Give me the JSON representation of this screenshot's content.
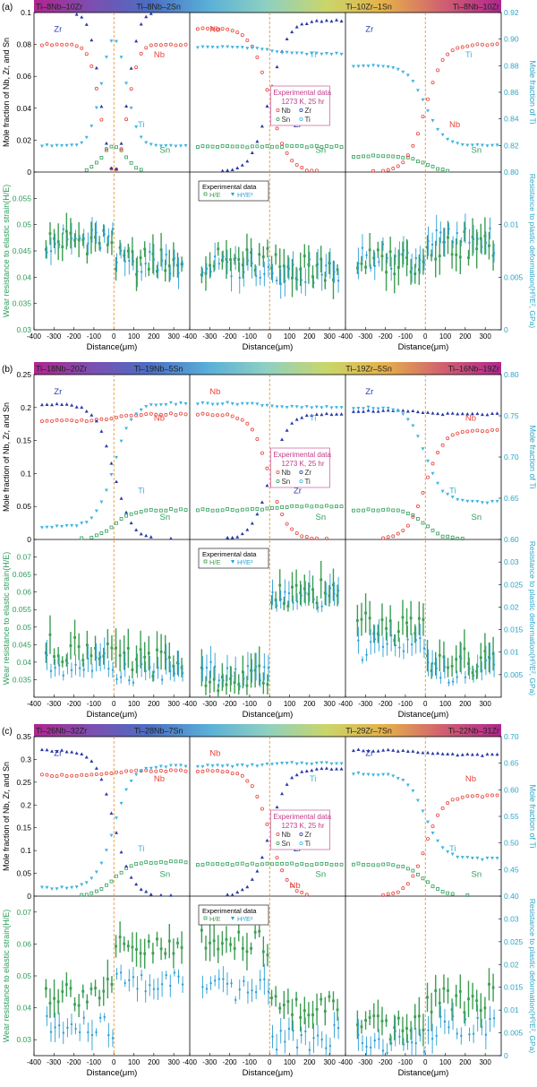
{
  "colors": {
    "nb": "#e8453c",
    "zr": "#2a3ba8",
    "ti": "#3fb4e0",
    "sn": "#2e9e5a",
    "he": "#3b9e52",
    "hhe": "#2a9fd6",
    "divider": "#e08a2a",
    "left_axis": "#2e9e5a",
    "right_axis": "#2aa5c8",
    "bar_stops": [
      "#b0268f",
      "#7b4fb0",
      "#4a6fc4",
      "#5ab0d8",
      "#8fd0c0",
      "#c9d66a",
      "#e6b04a",
      "#d06070",
      "#b0268f"
    ]
  },
  "chart_data": [
    {
      "type": "scatter",
      "panel_label": "(a)",
      "alloys": [
        "Ti–8Nb–10Zr",
        "Ti–8Nb–2Sn",
        "Ti–10Zr–1Sn",
        "Ti–8Nb–10Zr"
      ],
      "top": {
        "ylabel": "Mole fraction of Nb, Zr, and Sn",
        "ylabel_right": "Mole fraction of Ti",
        "ylim": [
          0,
          0.1
        ],
        "yticks": [
          "0",
          "0.02",
          "0.04",
          "0.06",
          "0.08",
          "0.1"
        ],
        "ylim_right": [
          0.8,
          0.92
        ],
        "yticks_right": [
          "0.80",
          "0.82",
          "0.84",
          "0.86",
          "0.88",
          "0.90",
          "0.92"
        ],
        "legend": {
          "title": "Experimental data",
          "cond": "1273 K, 25 hr",
          "items": [
            "Nb",
            "Zr",
            "Sn",
            "Ti"
          ]
        },
        "labels": [
          [
            "Zr",
            "Nb",
            "Ti",
            "Sn"
          ],
          [
            "Nb",
            "Ti",
            "Zr",
            "Sn"
          ],
          [
            "Zr",
            "Ti",
            "Nb",
            "Sn"
          ]
        ],
        "couples": [
          {
            "Nb": [
              0.08,
              0,
              0.08
            ],
            "Zr": [
              0.1,
              0,
              0.1
            ],
            "Sn": [
              0,
              0.016,
              0
            ],
            "Ti": [
              0.82,
              0.9,
              0.82
            ]
          },
          {
            "Nb": [
              0.09,
              0.09,
              0.0
            ],
            "Zr": [
              0.0,
              0.0,
              0.095
            ],
            "Sn": [
              0.016,
              0.016,
              0.016
            ],
            "Ti": [
              0.894,
              0.894,
              0.889
            ]
          },
          {
            "Nb": [
              0.0,
              0.0,
              0.08
            ],
            "Zr": [
              0.1,
              0.1,
              0.1
            ],
            "Sn": [
              0.01,
              0.01,
              0.0
            ],
            "Ti": [
              0.88,
              0.88,
              0.82
            ]
          }
        ]
      },
      "bottom": {
        "ylabel": "Wear resistance to elastic strain(H/E)",
        "ylabel_right": "Resistance to plastic deformation(H³/E², GPa)",
        "ylim": [
          0.03,
          0.06
        ],
        "yticks": [
          "0.03",
          "0.035",
          "0.04",
          "0.045",
          "0.05",
          "0.055"
        ],
        "ylim_right": [
          0,
          0.015
        ],
        "yticks_right": [
          "0",
          "0.005",
          "0.01"
        ],
        "legend": {
          "title": "Experimental data",
          "items": [
            "H/E",
            "H³/E²"
          ]
        },
        "he_levels": [
          [
            0.047,
            0.043
          ],
          [
            0.043,
            0.042
          ],
          [
            0.043,
            0.046
          ]
        ],
        "hhe_levels": [
          [
            0.0085,
            0.0065
          ],
          [
            0.006,
            0.0055
          ],
          [
            0.007,
            0.0085
          ]
        ]
      },
      "xlabel": "Distance(μm)",
      "xticks": [
        "-400",
        "-300",
        "-200",
        "-100",
        "0",
        "100",
        "200",
        "300"
      ]
    },
    {
      "type": "scatter",
      "panel_label": "(b)",
      "alloys": [
        "Ti–18Nb–20Zr",
        "Ti–19Nb–5Sn",
        "Ti–19Zr–5Sn",
        "Ti–16Nb–19Zr"
      ],
      "top": {
        "ylabel": "Mole fraction of Nb, Zr, and Sn",
        "ylabel_right": "Mole fraction of Ti",
        "ylim": [
          0,
          0.25
        ],
        "yticks": [
          "0",
          "0.05",
          "0.1",
          "0.15",
          "0.2",
          "0.25"
        ],
        "ylim_right": [
          0.6,
          0.8
        ],
        "yticks_right": [
          "0.60",
          "0.65",
          "0.70",
          "0.75",
          "0.80"
        ],
        "legend": {
          "title": "Experimental data",
          "cond": "1273 K, 25 hr",
          "items": [
            "Nb",
            "Zr",
            "Sn",
            "Ti"
          ]
        },
        "labels": [
          [
            "Zr",
            "Nb",
            "Ti",
            "Sn"
          ],
          [
            "Nb",
            "Ti",
            "Zr",
            "Sn"
          ],
          [
            "Zr",
            "Nb",
            "Ti",
            "Sn"
          ]
        ],
        "couples": [
          {
            "Nb": [
              0.18,
              0.19,
              0.19
            ],
            "Zr": [
              0.205,
              0,
              0
            ],
            "Sn": [
              0,
              0.045,
              0.045
            ],
            "Ti": [
              0.615,
              0.765,
              0.765
            ]
          },
          {
            "Nb": [
              0.19,
              0.19,
              0.0
            ],
            "Zr": [
              0.0,
              0.0,
              0.19
            ],
            "Sn": [
              0.045,
              0.045,
              0.05
            ],
            "Ti": [
              0.765,
              0.765,
              0.76
            ]
          },
          {
            "Nb": [
              0.0,
              0.0,
              0.165
            ],
            "Zr": [
              0.195,
              0.195,
              0.19
            ],
            "Sn": [
              0.045,
              0.045,
              0.0
            ],
            "Ti": [
              0.76,
              0.76,
              0.645
            ]
          }
        ]
      },
      "bottom": {
        "ylabel": "Wear resistance to elastic strain(H/E)",
        "ylabel_right": "Resistance to plastic deformation(H³/E², GPa)",
        "ylim": [
          0.03,
          0.075
        ],
        "yticks": [
          "0.035",
          "0.04",
          "0.045",
          "0.05",
          "0.055",
          "0.06",
          "0.065",
          "0.07"
        ],
        "ylim_right": [
          0,
          0.035
        ],
        "yticks_right": [
          "0.005",
          "0.01",
          "0.015",
          "0.02",
          "0.025",
          "0.03"
        ],
        "legend": {
          "title": "Experimental data",
          "items": [
            "H/E",
            "H³/E²"
          ]
        },
        "he_levels": [
          [
            0.044,
            0.04
          ],
          [
            0.035,
            0.06
          ],
          [
            0.05,
            0.04
          ]
        ],
        "hhe_levels": [
          [
            0.007,
            0.006
          ],
          [
            0.005,
            0.022
          ],
          [
            0.011,
            0.006
          ]
        ]
      },
      "xlabel": "Distance(μm)",
      "xticks": [
        "-400",
        "-300",
        "-200",
        "-100",
        "0",
        "100",
        "200",
        "300"
      ]
    },
    {
      "type": "scatter",
      "panel_label": "(c)",
      "alloys": [
        "Ti–26Nb–32Zr",
        "Ti–28Nb–7Sn",
        "Ti–29Zr–7Sn",
        "Ti–22Nb–31Zr"
      ],
      "top": {
        "ylabel": "Mole fraction of Nb, Zr, and Sn",
        "ylabel_right": "Mole fraction of Ti",
        "ylim": [
          0,
          0.35
        ],
        "yticks": [
          "0",
          "0.05",
          "0.1",
          "0.15",
          "0.2",
          "0.25",
          "0.3",
          "0.35"
        ],
        "ylim_right": [
          0.4,
          0.7
        ],
        "yticks_right": [
          "0.40",
          "0.45",
          "0.50",
          "0.55",
          "0.60",
          "0.65",
          "0.70"
        ],
        "legend": {
          "title": "Experimental data",
          "cond": "1273 K, 25 hr",
          "items": [
            "Nb",
            "Zr",
            "Sn",
            "Ti"
          ]
        },
        "labels": [
          [
            "Zr",
            "Nb",
            "Ti",
            "Sn"
          ],
          [
            "Nb",
            "Ti",
            "Zr",
            "Sn",
            "Nb"
          ],
          [
            "Zr",
            "Nb",
            "Ti",
            "Sn"
          ]
        ],
        "couples": [
          {
            "Nb": [
              0.265,
              0.275,
              0.275
            ],
            "Zr": [
              0.32,
              0,
              0
            ],
            "Sn": [
              0,
              0.075,
              0.075
            ],
            "Ti": [
              0.415,
              0.645,
              0.645
            ]
          },
          {
            "Nb": [
              0.275,
              0.275,
              0.0
            ],
            "Zr": [
              0.0,
              0.0,
              0.28
            ],
            "Sn": [
              0.07,
              0.07,
              0.07
            ],
            "Ti": [
              0.645,
              0.645,
              0.65
            ]
          },
          {
            "Nb": [
              0.0,
              0.0,
              0.22
            ],
            "Zr": [
              0.32,
              0.32,
              0.31
            ],
            "Sn": [
              0.07,
              0.07,
              0.0
            ],
            "Ti": [
              0.63,
              0.63,
              0.47
            ]
          }
        ]
      },
      "bottom": {
        "ylabel": "Wear resistance to elastic strain(H/E)",
        "ylabel_right": "Resistance to plastic deformation(H³/E², GPa)",
        "ylim": [
          0.025,
          0.075
        ],
        "yticks": [
          "0.03",
          "0.04",
          "0.05",
          "0.06",
          "0.07"
        ],
        "ylim_right": [
          0,
          0.035
        ],
        "yticks_right": [
          "0",
          "0.005",
          "0.01",
          "0.015",
          "0.02",
          "0.025",
          "0.03"
        ],
        "legend": {
          "title": "Experimental data",
          "items": [
            "H/E",
            "H³/E²"
          ]
        },
        "he_levels": [
          [
            0.045,
            0.058
          ],
          [
            0.06,
            0.04
          ],
          [
            0.033,
            0.043
          ]
        ],
        "hhe_levels": [
          [
            0.006,
            0.016
          ],
          [
            0.014,
            0.004
          ],
          [
            0.003,
            0.006
          ]
        ]
      },
      "xlabel": "Distance(μm)",
      "xticks": [
        "-400",
        "-300",
        "-200",
        "-100",
        "0",
        "100",
        "200",
        "300"
      ]
    }
  ]
}
